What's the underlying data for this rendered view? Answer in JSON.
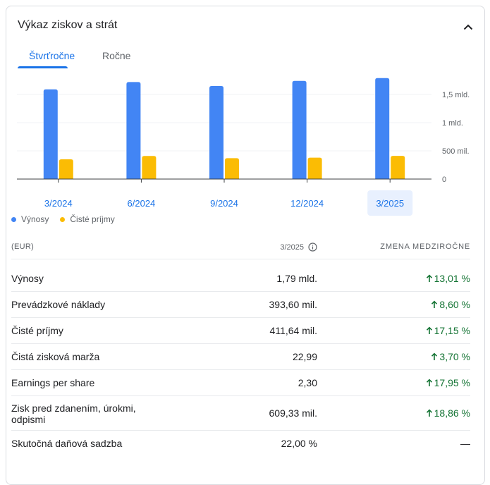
{
  "card": {
    "title": "Výkaz ziskov a strát"
  },
  "tabs": [
    {
      "label": "Štvrťročne",
      "active": true
    },
    {
      "label": "Ročne",
      "active": false
    }
  ],
  "chart_data": {
    "type": "bar",
    "categories": [
      "3/2024",
      "6/2024",
      "9/2024",
      "12/2024",
      "3/2025"
    ],
    "selected_category": "3/2025",
    "series": [
      {
        "name": "Výnosy",
        "color": "#4285f4",
        "values": [
          1590000000,
          1720000000,
          1650000000,
          1740000000,
          1790000000
        ]
      },
      {
        "name": "Čisté príjmy",
        "color": "#fbbc04",
        "values": [
          350000000,
          410000000,
          370000000,
          380000000,
          411640000
        ]
      }
    ],
    "ylim": [
      0,
      1750000000
    ],
    "yticks": [
      {
        "value": 0,
        "label": "0"
      },
      {
        "value": 500000000,
        "label": "500 mil."
      },
      {
        "value": 1000000000,
        "label": "1 mld."
      },
      {
        "value": 1500000000,
        "label": "1,5 mld."
      }
    ],
    "grid": true,
    "legend_position": "bottom-left"
  },
  "table": {
    "currency_label": "(EUR)",
    "period_label": "3/2025",
    "change_label": "ZMENA MEDZIROČNE",
    "rows": [
      {
        "label": "Výnosy",
        "value": "1,79 mld.",
        "change": "13,01 %",
        "trend": "up"
      },
      {
        "label": "Prevádzkové náklady",
        "value": "393,60 mil.",
        "change": "8,60 %",
        "trend": "up"
      },
      {
        "label": "Čisté príjmy",
        "value": "411,64 mil.",
        "change": "17,15 %",
        "trend": "up"
      },
      {
        "label": "Čistá zisková marža",
        "value": "22,99",
        "change": "3,70 %",
        "trend": "up"
      },
      {
        "label": "Earnings per share",
        "value": "2,30",
        "change": "17,95 %",
        "trend": "up"
      },
      {
        "label": "Zisk pred zdanením, úrokmi,\nodpismi",
        "value": "609,33 mil.",
        "change": "18,86 %",
        "trend": "up"
      },
      {
        "label": "Skutočná daňová sadzba",
        "value": "22,00 %",
        "change": "—",
        "trend": "none"
      }
    ]
  }
}
